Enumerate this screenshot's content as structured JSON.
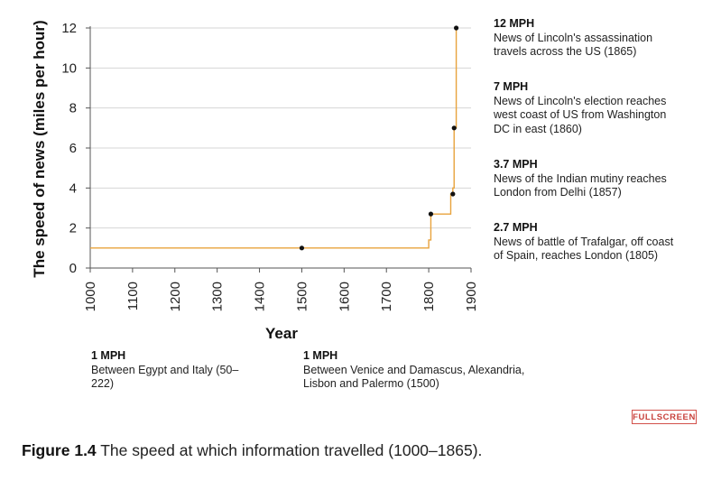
{
  "chart_data": {
    "type": "line",
    "xlabel": "Year",
    "ylabel": "The speed of news (miles per hour)",
    "xlim": [
      1000,
      1900
    ],
    "ylim": [
      0,
      12
    ],
    "x_ticks": [
      "1000",
      "1100",
      "1200",
      "1300",
      "1400",
      "1500",
      "1600",
      "1700",
      "1800",
      "1900"
    ],
    "y_ticks": [
      "0",
      "2",
      "4",
      "6",
      "8",
      "10",
      "12"
    ],
    "grid": "horizontal",
    "line_color": "#e8a33d",
    "step_line": [
      {
        "x": 1000,
        "y": 1
      },
      {
        "x": 1800,
        "y": 1
      },
      {
        "x": 1800,
        "y": 1.4
      },
      {
        "x": 1805,
        "y": 1.4
      },
      {
        "x": 1805,
        "y": 2.7
      },
      {
        "x": 1852,
        "y": 2.7
      },
      {
        "x": 1852,
        "y": 3.7
      },
      {
        "x": 1857,
        "y": 3.7
      },
      {
        "x": 1857,
        "y": 4
      },
      {
        "x": 1860,
        "y": 4
      },
      {
        "x": 1860,
        "y": 7
      },
      {
        "x": 1865,
        "y": 7
      },
      {
        "x": 1865,
        "y": 12
      }
    ],
    "points": [
      {
        "x": 1500,
        "y": 1
      },
      {
        "x": 1805,
        "y": 2.7
      },
      {
        "x": 1857,
        "y": 3.7
      },
      {
        "x": 1860,
        "y": 7
      },
      {
        "x": 1865,
        "y": 12
      }
    ],
    "annotations": [
      {
        "speed": "12 MPH",
        "text": "News of Lincoln's assassination travels across the US (1865)"
      },
      {
        "speed": "7 MPH",
        "text": "News of Lincoln's election reaches west coast of US from Washington DC in east (1860)"
      },
      {
        "speed": "3.7 MPH",
        "text": "News of the Indian mutiny reaches London from Delhi (1857)"
      },
      {
        "speed": "2.7 MPH",
        "text": "News of battle of Trafalgar, off coast of Spain, reaches London (1805)"
      },
      {
        "speed": "1 MPH",
        "text": "Between Egypt and Italy (50–222)"
      },
      {
        "speed": "1 MPH",
        "text": "Between Venice and Damascus, Alexandria, Lisbon and Palermo (1500)"
      }
    ]
  },
  "fullscreen_label": "FULLSCREEN",
  "caption": {
    "figure_label": "Figure 1.4",
    "text": " The speed at which information travelled (1000–1865)."
  }
}
